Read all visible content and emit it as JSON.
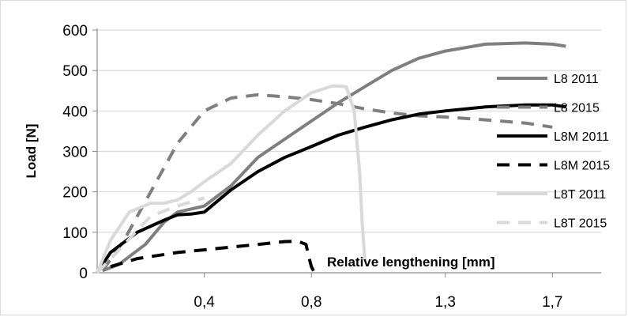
{
  "chart_data": {
    "type": "line",
    "title": "",
    "xlabel": "Relative lengthening [mm]",
    "ylabel": "Load [N]",
    "xlim": [
      0,
      1.75
    ],
    "ylim": [
      0,
      600
    ],
    "x_ticks": [
      {
        "value": 0.4,
        "label": "0,4"
      },
      {
        "value": 0.8,
        "label": "0,8"
      },
      {
        "value": 1.3,
        "label": "1,3"
      },
      {
        "value": 1.7,
        "label": "1,7"
      }
    ],
    "y_ticks": [
      0,
      100,
      200,
      300,
      400,
      500,
      600
    ],
    "grid": "horizontal",
    "legend": "right",
    "series": [
      {
        "name": "L8 2011",
        "color": "#7f7f7f",
        "style": "solid",
        "points": [
          [
            0.02,
            5
          ],
          [
            0.08,
            20
          ],
          [
            0.18,
            70
          ],
          [
            0.25,
            125
          ],
          [
            0.3,
            150
          ],
          [
            0.4,
            165
          ],
          [
            0.5,
            215
          ],
          [
            0.6,
            285
          ],
          [
            0.7,
            330
          ],
          [
            0.8,
            375
          ],
          [
            0.9,
            420
          ],
          [
            1.0,
            460
          ],
          [
            1.1,
            500
          ],
          [
            1.2,
            530
          ],
          [
            1.3,
            548
          ],
          [
            1.45,
            565
          ],
          [
            1.6,
            568
          ],
          [
            1.7,
            565
          ],
          [
            1.75,
            560
          ]
        ]
      },
      {
        "name": "L8 2015",
        "color": "#7f7f7f",
        "style": "dashed",
        "points": [
          [
            0.02,
            5
          ],
          [
            0.1,
            80
          ],
          [
            0.2,
            200
          ],
          [
            0.3,
            320
          ],
          [
            0.4,
            400
          ],
          [
            0.5,
            432
          ],
          [
            0.6,
            440
          ],
          [
            0.7,
            435
          ],
          [
            0.8,
            428
          ],
          [
            0.9,
            418
          ],
          [
            1.0,
            405
          ],
          [
            1.1,
            395
          ],
          [
            1.2,
            388
          ],
          [
            1.3,
            385
          ],
          [
            1.45,
            378
          ],
          [
            1.6,
            370
          ],
          [
            1.7,
            360
          ]
        ]
      },
      {
        "name": "L8M 2011",
        "color": "#000000",
        "style": "solid",
        "points": [
          [
            0.0,
            0
          ],
          [
            0.05,
            50
          ],
          [
            0.15,
            100
          ],
          [
            0.25,
            130
          ],
          [
            0.3,
            143
          ],
          [
            0.35,
            145
          ],
          [
            0.4,
            150
          ],
          [
            0.5,
            205
          ],
          [
            0.6,
            250
          ],
          [
            0.7,
            285
          ],
          [
            0.8,
            312
          ],
          [
            0.9,
            340
          ],
          [
            1.0,
            360
          ],
          [
            1.1,
            378
          ],
          [
            1.2,
            392
          ],
          [
            1.3,
            400
          ],
          [
            1.45,
            410
          ],
          [
            1.6,
            415
          ],
          [
            1.7,
            415
          ],
          [
            1.75,
            410
          ]
        ]
      },
      {
        "name": "L8M 2015",
        "color": "#000000",
        "style": "dashed",
        "points": [
          [
            0.05,
            15
          ],
          [
            0.15,
            35
          ],
          [
            0.3,
            50
          ],
          [
            0.45,
            60
          ],
          [
            0.6,
            70
          ],
          [
            0.7,
            77
          ],
          [
            0.75,
            78
          ],
          [
            0.78,
            70
          ],
          [
            0.79,
            40
          ],
          [
            0.8,
            15
          ],
          [
            0.81,
            2
          ]
        ]
      },
      {
        "name": "L8T 2011",
        "color": "#d9d9d9",
        "style": "solid",
        "points": [
          [
            0.0,
            0
          ],
          [
            0.05,
            80
          ],
          [
            0.12,
            150
          ],
          [
            0.2,
            172
          ],
          [
            0.25,
            172
          ],
          [
            0.3,
            180
          ],
          [
            0.35,
            200
          ],
          [
            0.4,
            225
          ],
          [
            0.5,
            270
          ],
          [
            0.6,
            340
          ],
          [
            0.7,
            400
          ],
          [
            0.8,
            445
          ],
          [
            0.88,
            462
          ],
          [
            0.93,
            460
          ],
          [
            0.96,
            400
          ],
          [
            0.98,
            250
          ],
          [
            0.99,
            120
          ],
          [
            1.0,
            30
          ]
        ]
      },
      {
        "name": "L8T 2015",
        "color": "#d9d9d9",
        "style": "dashed",
        "points": [
          [
            0.0,
            0
          ],
          [
            0.08,
            55
          ],
          [
            0.15,
            105
          ],
          [
            0.2,
            140
          ],
          [
            0.3,
            165
          ],
          [
            0.4,
            185
          ]
        ]
      }
    ]
  }
}
